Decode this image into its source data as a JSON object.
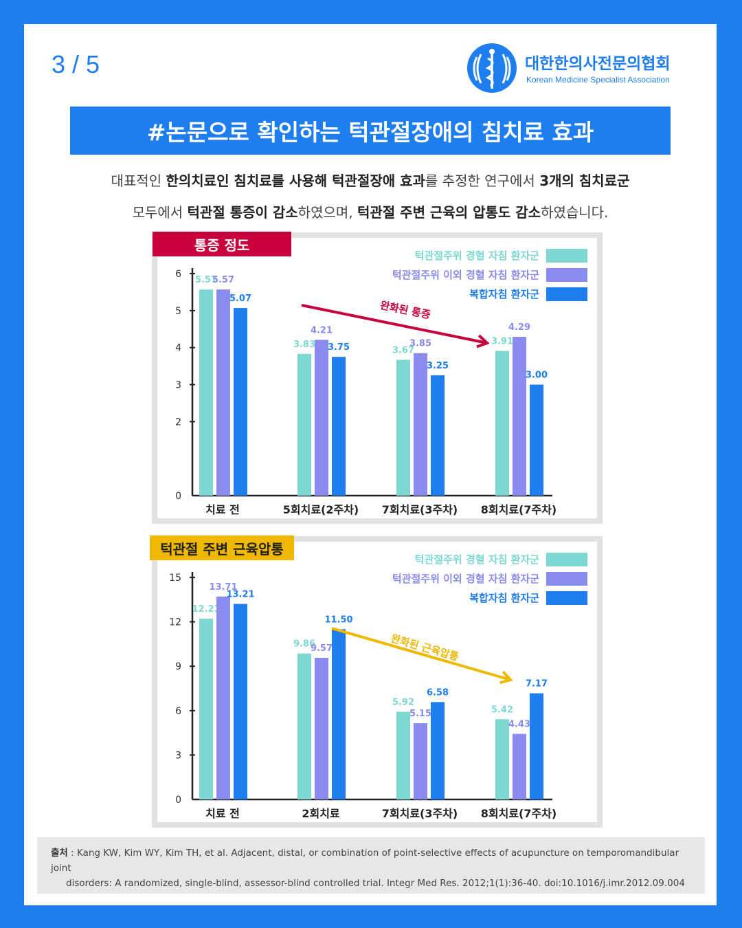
{
  "page": {
    "number": "3 / 5"
  },
  "logo": {
    "name": "대한한의사전문의협회",
    "subtitle": "Korean Medicine Specialist Association"
  },
  "title": "#논문으로 확인하는 턱관절장애의 침치료 효과",
  "intro": {
    "line1": [
      {
        "t": "대표적인 ",
        "b": false
      },
      {
        "t": "한의치료인 침치료를 사용해 턱관절장애 효과",
        "b": true
      },
      {
        "t": "를 추정한 연구에서 ",
        "b": false
      },
      {
        "t": "3개의 침치료군",
        "b": true
      }
    ],
    "line2": [
      {
        "t": "모두에서 ",
        "b": false
      },
      {
        "t": "턱관절 통증이 감소",
        "b": true
      },
      {
        "t": "하였으며, ",
        "b": false
      },
      {
        "t": "턱관절 주변 근육의 압통도 감소",
        "b": true
      },
      {
        "t": "하였습니다.",
        "b": false
      }
    ]
  },
  "colors": {
    "brand": "#1E7EF0",
    "series": [
      "#7DD8D2",
      "#8A8BEE",
      "#1E7EF0"
    ],
    "tag1": "#C8003C",
    "tag2": "#F0B800",
    "arrow1": "#C8003C",
    "arrow2": "#F0B800"
  },
  "chart_data": [
    {
      "type": "bar",
      "title": "통증 정도",
      "categories": [
        "치료 전",
        "5회치료(2주차)",
        "7회치료(3주차)",
        "8회치료(7주차)"
      ],
      "series": [
        {
          "name": "턱관절주위 경혈 자침 환자군",
          "values": [
            5.57,
            3.83,
            3.67,
            3.91
          ],
          "labels": [
            "5.57",
            "3.83",
            "3.67",
            "3.91"
          ]
        },
        {
          "name": "턱관절주위 이외 경혈 자침 환자군",
          "values": [
            5.57,
            4.21,
            3.85,
            4.29
          ],
          "labels": [
            "5.57",
            "4.21",
            "3.85",
            "4.29"
          ]
        },
        {
          "name": "복합자침 환자군",
          "values": [
            5.07,
            3.75,
            3.25,
            3.0
          ],
          "labels": [
            "5.07",
            "3.75",
            "3.25",
            "3.00"
          ]
        }
      ],
      "yticks": [
        0,
        2,
        3,
        4,
        5,
        6
      ],
      "ylim": [
        0,
        6
      ],
      "annotation": "완화된 통증",
      "legend_position": "top-right"
    },
    {
      "type": "bar",
      "title": "턱관절 주변 근육압통",
      "categories": [
        "치료 전",
        "2회치료",
        "7회치료(3주차)",
        "8회치료(7주차)"
      ],
      "series": [
        {
          "name": "턱관절주위 경혈 자침 환자군",
          "values": [
            12.21,
            9.86,
            5.92,
            5.42
          ],
          "labels": [
            "12.21",
            "9.86",
            "5.92",
            "5.42"
          ]
        },
        {
          "name": "턱관절주위 이외 경혈 자침 환자군",
          "values": [
            13.71,
            9.57,
            5.15,
            4.43
          ],
          "labels": [
            "13.71",
            "9.57",
            "5.15",
            "4.43"
          ]
        },
        {
          "name": "복합자침 환자군",
          "values": [
            13.21,
            11.5,
            6.58,
            7.17
          ],
          "labels": [
            "13.21",
            "11.50",
            "6.58",
            "7.17"
          ]
        }
      ],
      "yticks": [
        0,
        3,
        6,
        9,
        12,
        15
      ],
      "ylim": [
        0,
        15
      ],
      "annotation": "완화된 근육압통",
      "legend_position": "top-right"
    }
  ],
  "source": {
    "label": "출처",
    "text1": "Kang KW, Kim WY, Kim TH, et al. Adjacent, distal, or combination of point-selective effects of acupuncture on temporomandibular joint",
    "text2": "disorders: A randomized, single-blind, assessor-blind controlled trial. Integr Med Res. 2012;1(1):36-40. doi:10.1016/j.imr.2012.09.004"
  }
}
